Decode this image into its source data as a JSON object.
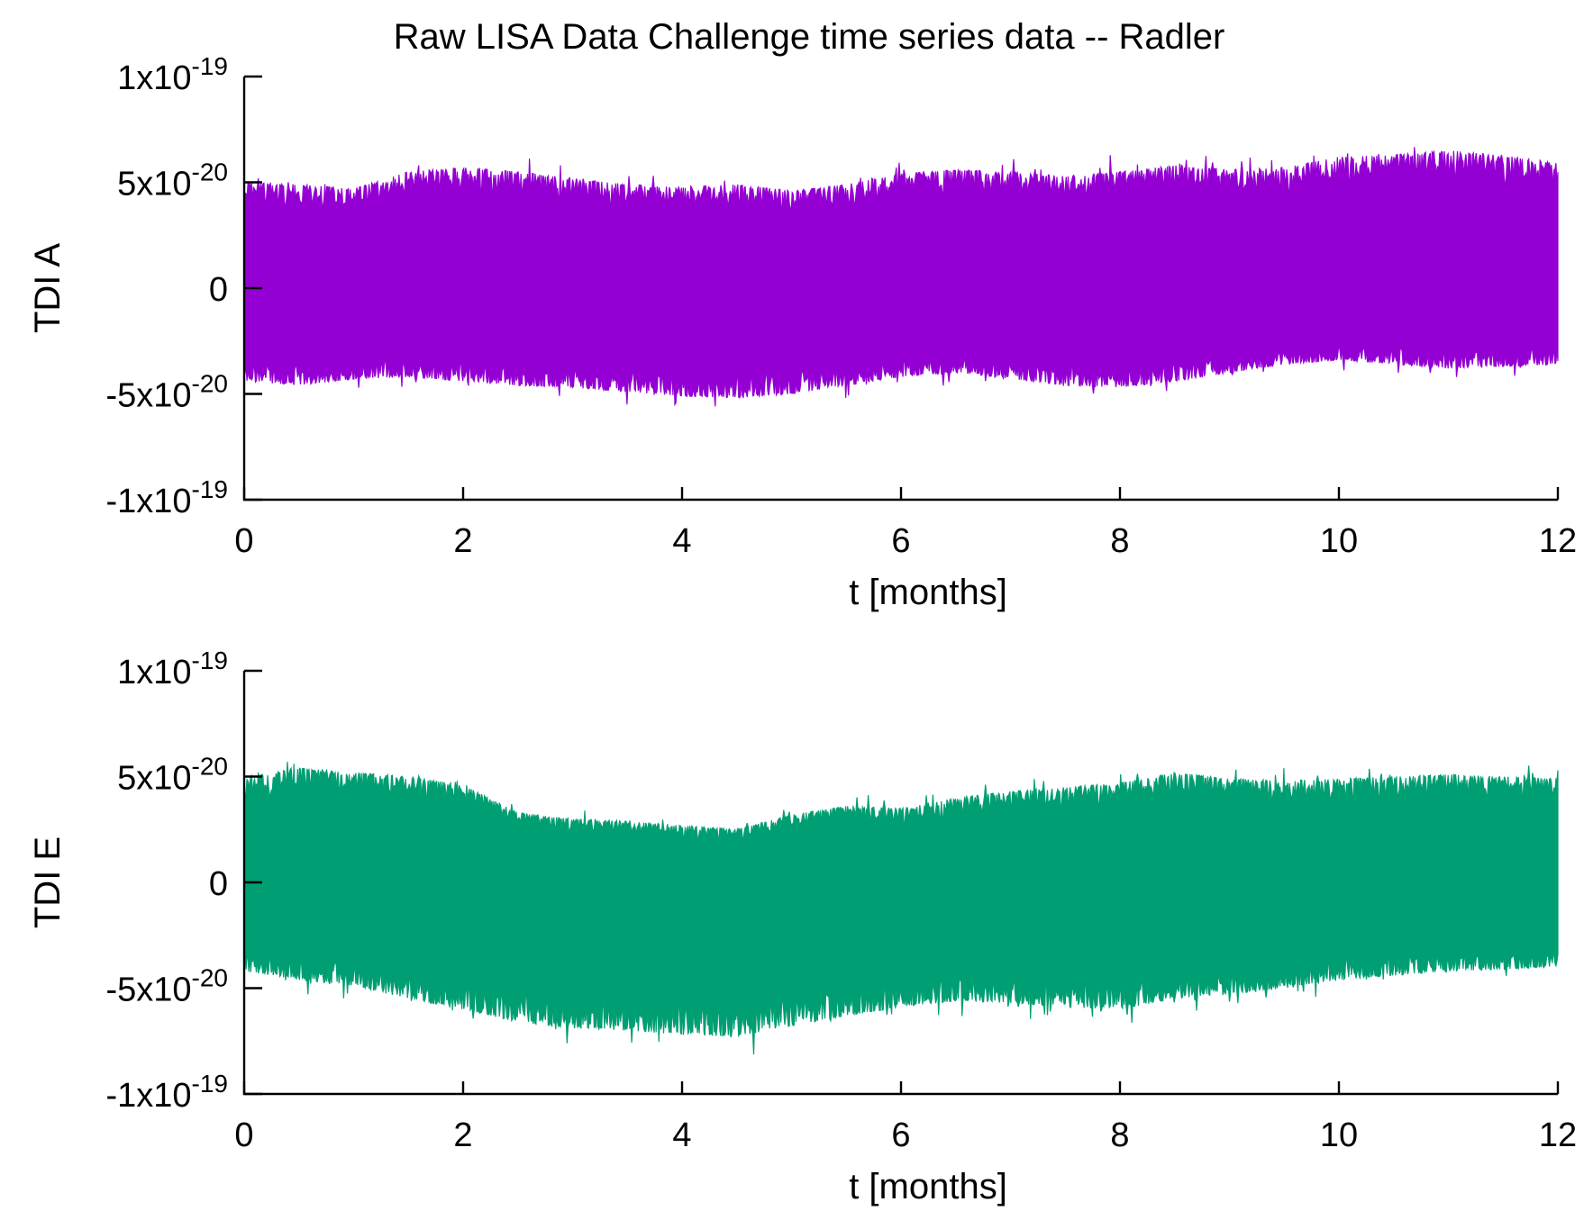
{
  "chart_data": {
    "type": "area",
    "title": "Raw LISA Data Challenge time series data -- Radler",
    "panels": [
      {
        "ylabel": "TDI A",
        "xlabel": "t [months]",
        "xlim": [
          0,
          12
        ],
        "ylim": [
          -1e-19,
          1e-19
        ],
        "x_ticks": [
          "0",
          "2",
          "4",
          "6",
          "8",
          "10",
          "12"
        ],
        "y_ticks": [
          {
            "value": 1e-19,
            "mantissa": "1x10",
            "exp": "-19"
          },
          {
            "value": 5e-20,
            "mantissa": "5x10",
            "exp": "-20"
          },
          {
            "value": 0,
            "mantissa": "0",
            "exp": ""
          },
          {
            "value": -5e-20,
            "mantissa": "-5x10",
            "exp": "-20"
          },
          {
            "value": -1e-19,
            "mantissa": "-1x10",
            "exp": "-19"
          }
        ],
        "color": "#9400d3",
        "envelope": {
          "t": [
            0,
            0.5,
            1,
            1.5,
            2,
            2.5,
            3,
            3.5,
            4,
            4.5,
            5,
            5.5,
            6,
            6.5,
            7,
            7.5,
            8,
            8.5,
            9,
            9.5,
            10,
            10.5,
            11,
            11.5,
            12
          ],
          "upper": [
            5e-20,
            4.9e-20,
            4.7e-20,
            5.5e-20,
            5.7e-20,
            5.5e-20,
            5.2e-20,
            4.9e-20,
            4.8e-20,
            4.9e-20,
            4.6e-20,
            4.9e-20,
            5.4e-20,
            5.6e-20,
            5.5e-20,
            5.3e-20,
            5.5e-20,
            5.8e-20,
            5.6e-20,
            5.7e-20,
            6.2e-20,
            6.3e-20,
            6.5e-20,
            6.3e-20,
            5.9e-20
          ],
          "lower": [
            -4.4e-20,
            -4.6e-20,
            -4.3e-20,
            -4.2e-20,
            -4.4e-20,
            -4.6e-20,
            -4.7e-20,
            -4.9e-20,
            -5.1e-20,
            -5.2e-20,
            -5e-20,
            -4.6e-20,
            -4.2e-20,
            -4e-20,
            -4.3e-20,
            -4.6e-20,
            -4.7e-20,
            -4.4e-20,
            -4e-20,
            -3.6e-20,
            -3.4e-20,
            -3.6e-20,
            -3.8e-20,
            -3.7e-20,
            -3.6e-20
          ]
        }
      },
      {
        "ylabel": "TDI E",
        "xlabel": "t [months]",
        "xlim": [
          0,
          12
        ],
        "ylim": [
          -1e-19,
          1e-19
        ],
        "x_ticks": [
          "0",
          "2",
          "4",
          "6",
          "8",
          "10",
          "12"
        ],
        "y_ticks": [
          {
            "value": 1e-19,
            "mantissa": "1x10",
            "exp": "-19"
          },
          {
            "value": 5e-20,
            "mantissa": "5x10",
            "exp": "-20"
          },
          {
            "value": 0,
            "mantissa": "0",
            "exp": ""
          },
          {
            "value": -5e-20,
            "mantissa": "-5x10",
            "exp": "-20"
          },
          {
            "value": -1e-19,
            "mantissa": "-1x10",
            "exp": "-19"
          }
        ],
        "color": "#009e73",
        "envelope": {
          "t": [
            0,
            0.5,
            1,
            1.5,
            2,
            2.5,
            3,
            3.5,
            4,
            4.5,
            5,
            5.5,
            6,
            6.5,
            7,
            7.5,
            8,
            8.5,
            9,
            9.5,
            10,
            10.5,
            11,
            11.5,
            12
          ],
          "upper": [
            5e-20,
            5.4e-20,
            5.2e-20,
            5e-20,
            4.6e-20,
            3.3e-20,
            3e-20,
            2.9e-20,
            2.7e-20,
            2.5e-20,
            3.2e-20,
            3.6e-20,
            3.5e-20,
            4e-20,
            4.3e-20,
            4.5e-20,
            4.7e-20,
            5.2e-20,
            4.9e-20,
            4.8e-20,
            4.9e-20,
            5e-20,
            5.1e-20,
            5e-20,
            4.9e-20
          ],
          "lower": [
            -4.2e-20,
            -4.6e-20,
            -4.9e-20,
            -5.5e-20,
            -6e-20,
            -6.6e-20,
            -6.9e-20,
            -7e-20,
            -7.2e-20,
            -7.3e-20,
            -6.8e-20,
            -6.3e-20,
            -5.9e-20,
            -5.6e-20,
            -5.7e-20,
            -5.9e-20,
            -6e-20,
            -5.5e-20,
            -5.3e-20,
            -5e-20,
            -4.6e-20,
            -4.4e-20,
            -4.2e-20,
            -4.1e-20,
            -4e-20
          ]
        }
      }
    ]
  }
}
